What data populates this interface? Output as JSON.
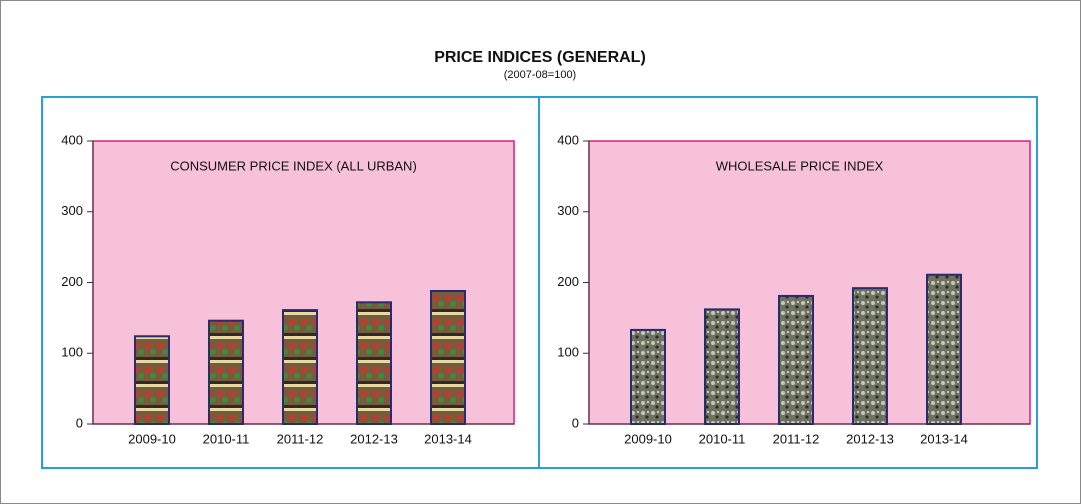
{
  "title": "PRICE INDICES (GENERAL)",
  "subtitle": "(2007-08=100)",
  "chart_data": [
    {
      "type": "bar",
      "title": "CONSUMER PRICE INDEX (ALL URBAN)",
      "categories": [
        "2009-10",
        "2010-11",
        "2011-12",
        "2012-13",
        "2013-14"
      ],
      "values": [
        124,
        146,
        161,
        172,
        188
      ],
      "color": "#7a5a3c",
      "ylim": [
        0,
        400
      ],
      "yticks": [
        0,
        100,
        200,
        300,
        400
      ]
    },
    {
      "type": "bar",
      "title": "WHOLESALE PRICE INDEX",
      "categories": [
        "2009-10",
        "2010-11",
        "2011-12",
        "2012-13",
        "2013-14"
      ],
      "values": [
        133,
        162,
        181,
        192,
        211
      ],
      "color": "#6e7262",
      "ylim": [
        0,
        400
      ],
      "yticks": [
        0,
        100,
        200,
        300,
        400
      ]
    }
  ]
}
